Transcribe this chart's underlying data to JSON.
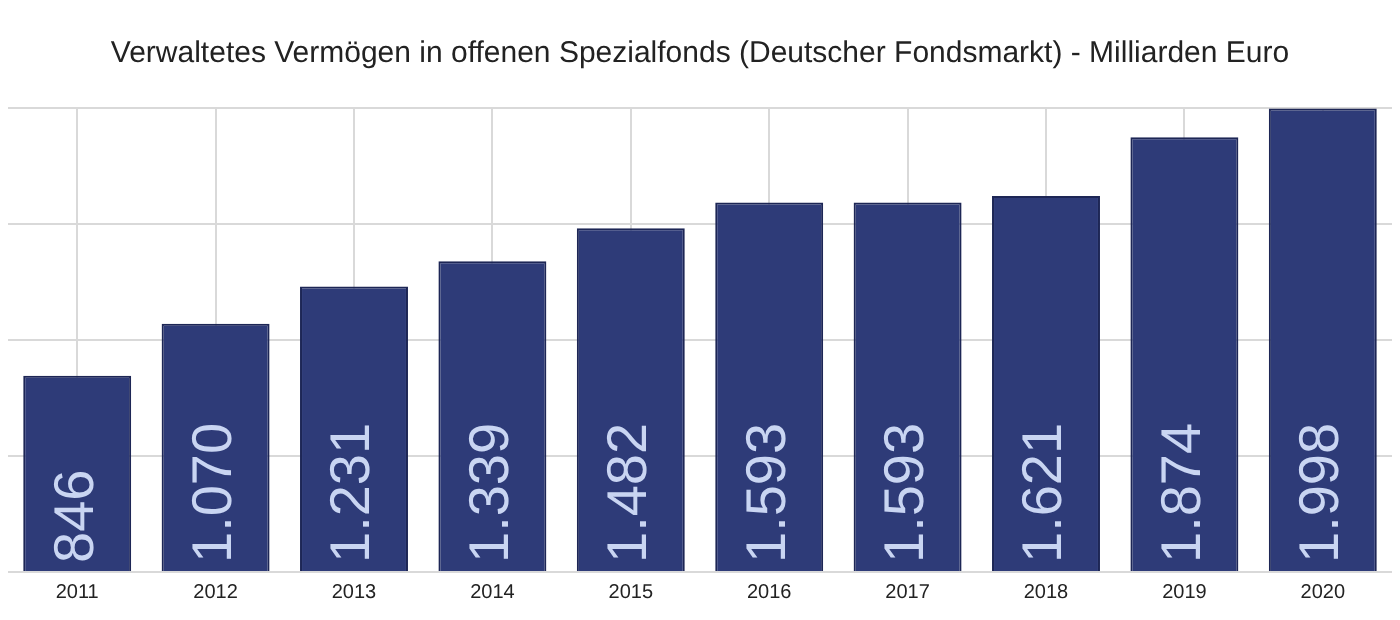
{
  "chart_data": {
    "type": "bar",
    "title": "Verwaltetes Vermögen in offenen Spezialfonds (Deutscher Fondsmarkt) - Milliarden Euro",
    "categories": [
      "2011",
      "2012",
      "2013",
      "2014",
      "2015",
      "2016",
      "2017",
      "2018",
      "2019",
      "2020"
    ],
    "values": [
      846,
      1070,
      1231,
      1339,
      1482,
      1593,
      1593,
      1621,
      1874,
      1998
    ],
    "value_labels": [
      "846",
      "1.070",
      "1.231",
      "1.339",
      "1.482",
      "1.593",
      "1.593",
      "1.621",
      "1.874",
      "1.998"
    ],
    "color": "#2e3b78",
    "ylim": [
      0,
      2000
    ],
    "yticks": [
      {
        "value": 0,
        "label": null
      },
      {
        "value": 500,
        "label": null
      },
      {
        "value": 1000,
        "label": null
      },
      {
        "value": 1500,
        "label": null
      },
      {
        "value": 2000,
        "label": null
      }
    ],
    "tick_labels": "x",
    "grid": true,
    "legend": false
  }
}
